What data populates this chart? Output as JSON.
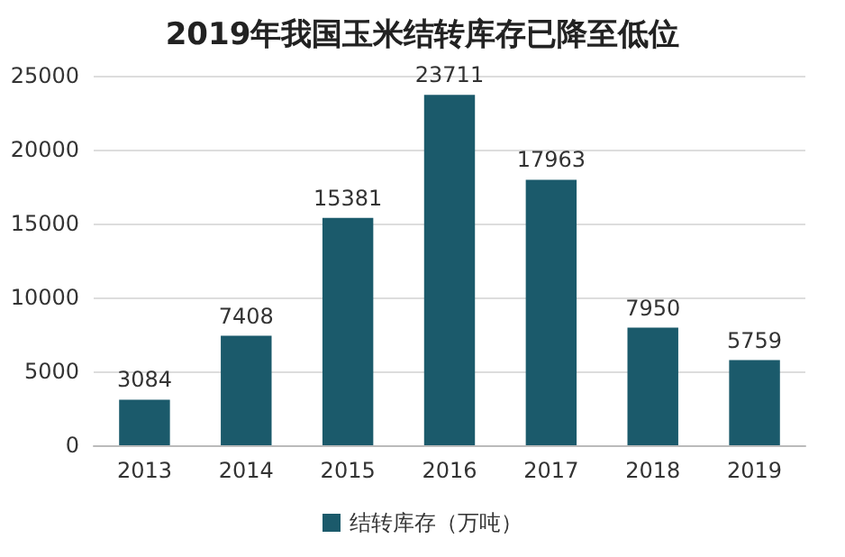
{
  "chart_data": {
    "type": "bar",
    "title": "2019年我国玉米结转库存已降至低位",
    "categories": [
      "2013",
      "2014",
      "2015",
      "2016",
      "2017",
      "2018",
      "2019"
    ],
    "series": [
      {
        "name": "结转库存（万吨）",
        "color": "#1b5a6b",
        "values": [
          3084,
          7408,
          15381,
          23711,
          17963,
          7950,
          5759
        ]
      }
    ],
    "ylim": [
      0,
      25000
    ],
    "yticks": [
      0,
      5000,
      10000,
      15000,
      20000,
      25000
    ],
    "grid": "y",
    "legend": "bottom",
    "data_labels": true
  }
}
